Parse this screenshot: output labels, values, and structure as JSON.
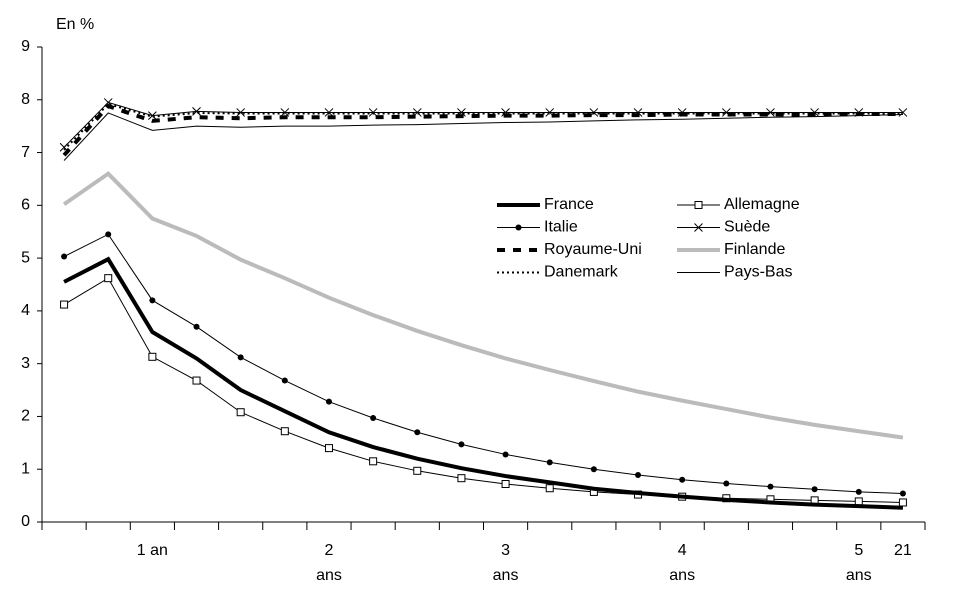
{
  "chart_data": {
    "type": "line",
    "y_label": "En %",
    "categories": [
      null,
      null,
      "1 an",
      null,
      null,
      null,
      "2\nans",
      null,
      null,
      null,
      "3\nans",
      null,
      null,
      null,
      "4\nans",
      null,
      null,
      null,
      "5\nans",
      "21"
    ],
    "ylim": [
      0,
      9
    ],
    "yticks": [
      0,
      1,
      2,
      3,
      4,
      5,
      6,
      7,
      8,
      9
    ],
    "grid": false,
    "legend": "center-right",
    "series": [
      {
        "name": "France",
        "color": "#000000",
        "width": 4,
        "dash": "none",
        "marker": "none",
        "values": [
          4.55,
          4.98,
          3.6,
          3.1,
          2.5,
          2.1,
          1.7,
          1.42,
          1.2,
          1.02,
          0.87,
          0.75,
          0.63,
          0.55,
          0.48,
          0.42,
          0.37,
          0.33,
          0.3,
          0.27
        ]
      },
      {
        "name": "Allemagne",
        "color": "#000000",
        "width": 1,
        "dash": "none",
        "marker": "square",
        "values": [
          4.12,
          4.62,
          3.13,
          2.68,
          2.08,
          1.72,
          1.4,
          1.15,
          0.97,
          0.83,
          0.72,
          0.64,
          0.57,
          0.52,
          0.48,
          0.45,
          0.43,
          0.41,
          0.39,
          0.37
        ]
      },
      {
        "name": "Italie",
        "color": "#000000",
        "width": 1,
        "dash": "none",
        "marker": "dot",
        "values": [
          5.03,
          5.45,
          4.2,
          3.7,
          3.12,
          2.68,
          2.28,
          1.97,
          1.7,
          1.47,
          1.28,
          1.13,
          1.0,
          0.89,
          0.8,
          0.73,
          0.67,
          0.62,
          0.57,
          0.54
        ]
      },
      {
        "name": "Suède",
        "color": "#000000",
        "width": 1,
        "dash": "none",
        "marker": "cross",
        "values": [
          7.1,
          7.95,
          7.7,
          7.78,
          7.76,
          7.76,
          7.76,
          7.76,
          7.76,
          7.76,
          7.76,
          7.76,
          7.76,
          7.76,
          7.76,
          7.76,
          7.76,
          7.76,
          7.76,
          7.76
        ]
      },
      {
        "name": "Royaume-Uni",
        "color": "#000000",
        "width": 4,
        "dash": "8 8",
        "marker": "none",
        "values": [
          6.95,
          7.88,
          7.6,
          7.67,
          7.65,
          7.67,
          7.67,
          7.67,
          7.68,
          7.69,
          7.7,
          7.7,
          7.71,
          7.71,
          7.72,
          7.72,
          7.72,
          7.72,
          7.73,
          7.73
        ]
      },
      {
        "name": "Finlande",
        "color": "#bbbbbb",
        "width": 4,
        "dash": "none",
        "marker": "none",
        "values": [
          6.02,
          6.6,
          5.75,
          5.42,
          4.97,
          4.62,
          4.25,
          3.92,
          3.62,
          3.35,
          3.1,
          2.88,
          2.67,
          2.47,
          2.3,
          2.14,
          1.98,
          1.84,
          1.72,
          1.6
        ]
      },
      {
        "name": "Danemark",
        "color": "#000000",
        "width": 2,
        "dash": "2 3",
        "marker": "none",
        "values": [
          7.05,
          7.92,
          7.68,
          7.75,
          7.74,
          7.74,
          7.74,
          7.74,
          7.74,
          7.74,
          7.74,
          7.74,
          7.74,
          7.74,
          7.74,
          7.74,
          7.74,
          7.74,
          7.74,
          7.74
        ]
      },
      {
        "name": "Pays-Bas",
        "color": "#000000",
        "width": 1,
        "dash": "none",
        "marker": "none",
        "values": [
          6.85,
          7.75,
          7.42,
          7.5,
          7.48,
          7.5,
          7.5,
          7.52,
          7.53,
          7.55,
          7.57,
          7.58,
          7.6,
          7.62,
          7.63,
          7.65,
          7.67,
          7.68,
          7.7,
          7.72
        ]
      }
    ]
  }
}
